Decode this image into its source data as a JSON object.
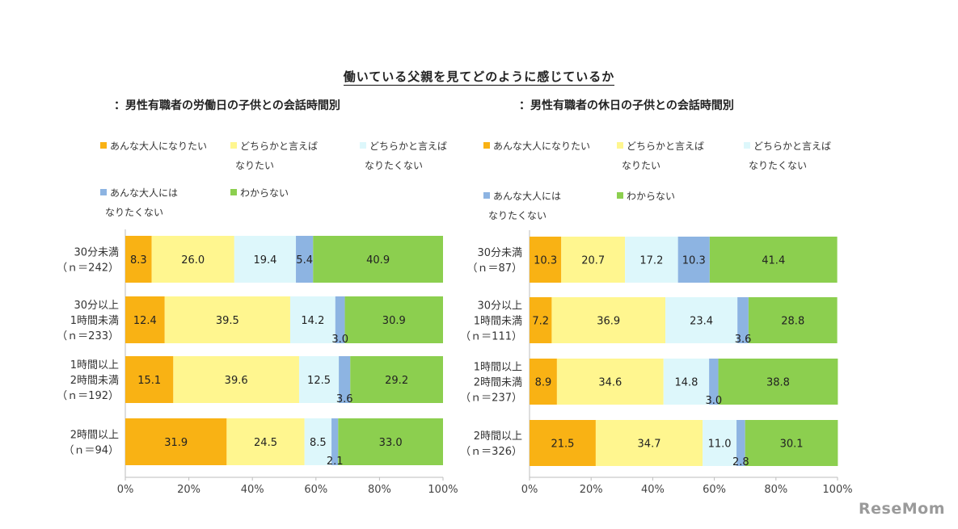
{
  "title": "働いている父親を見てどのように感じているか",
  "legend": [
    {
      "label": "あんな大人になりたい",
      "color": "#F9B214"
    },
    {
      "label": "どちらかと言えば\nなりたい",
      "color": "#FFF68F"
    },
    {
      "label": "どちらかと言えば\nなりたくない",
      "color": "#DDF7FB"
    },
    {
      "label": "あんな大人には\nなりたくない",
      "color": "#8DB4E2"
    },
    {
      "label": "わからない",
      "color": "#8CCF4F"
    }
  ],
  "x_ticks": [
    "0%",
    "20%",
    "40%",
    "60%",
    "80%",
    "100%"
  ],
  "watermark": "ReseMom",
  "chart_data": [
    {
      "type": "bar",
      "orientation": "horizontal-stacked-100",
      "subtitle": "：男性有職者の労働日の子供との会話時間別",
      "categories": [
        "30分未満\n（ｎ＝242）",
        "30分以上\n1時間未満\n（ｎ＝233）",
        "1時間以上\n2時間未満\n（ｎ＝192）",
        "2時間以上\n（ｎ＝94）"
      ],
      "series": [
        {
          "name": "あんな大人になりたい",
          "values": [
            8.3,
            12.4,
            15.1,
            31.9
          ]
        },
        {
          "name": "どちらかと言えば\nなりたい",
          "values": [
            26.0,
            39.5,
            39.6,
            24.5
          ]
        },
        {
          "name": "どちらかと言えば\nなりたくない",
          "values": [
            19.4,
            14.2,
            12.5,
            8.5
          ]
        },
        {
          "name": "あんな大人には\nなりたくない",
          "values": [
            5.4,
            3.0,
            3.6,
            2.1
          ]
        },
        {
          "name": "わからない",
          "values": [
            40.9,
            30.9,
            29.2,
            33.0
          ]
        }
      ],
      "labels": [
        [
          "8.3",
          "26.0",
          "19.4",
          "5.4",
          "40.9"
        ],
        [
          "12.4",
          "39.5",
          "14.2",
          "3.0",
          "30.9"
        ],
        [
          "15.1",
          "39.6",
          "12.5",
          "3.6",
          "29.2"
        ],
        [
          "31.9",
          "24.5",
          "8.5",
          "2.1",
          "33.0"
        ]
      ],
      "xlim": [
        0,
        100
      ]
    },
    {
      "type": "bar",
      "orientation": "horizontal-stacked-100",
      "subtitle": "：男性有職者の休日の子供との会話時間別",
      "categories": [
        "30分未満\n（ｎ＝87）",
        "30分以上\n1時間未満\n（ｎ＝111）",
        "1時間以上\n2時間未満\n（ｎ＝237）",
        "2時間以上\n（ｎ＝326）"
      ],
      "series": [
        {
          "name": "あんな大人になりたい",
          "values": [
            10.3,
            7.2,
            8.9,
            21.5
          ]
        },
        {
          "name": "どちらかと言えば\nなりたい",
          "values": [
            20.7,
            36.9,
            34.6,
            34.7
          ]
        },
        {
          "name": "どちらかと言えば\nなりたくない",
          "values": [
            17.2,
            23.4,
            14.8,
            11.0
          ]
        },
        {
          "name": "あんな大人には\nなりたくない",
          "values": [
            10.3,
            3.6,
            3.0,
            2.8
          ]
        },
        {
          "name": "わからない",
          "values": [
            41.4,
            28.8,
            38.8,
            30.1
          ]
        }
      ],
      "labels": [
        [
          "10.3",
          "20.7",
          "17.2",
          "10.3",
          "41.4"
        ],
        [
          "7.2",
          "36.9",
          "23.4",
          "3.6",
          "28.8"
        ],
        [
          "8.9",
          "34.6",
          "14.8",
          "3.0",
          "38.8"
        ],
        [
          "21.5",
          "34.7",
          "11.0",
          "2.8",
          "30.1"
        ]
      ],
      "xlim": [
        0,
        100
      ]
    }
  ]
}
